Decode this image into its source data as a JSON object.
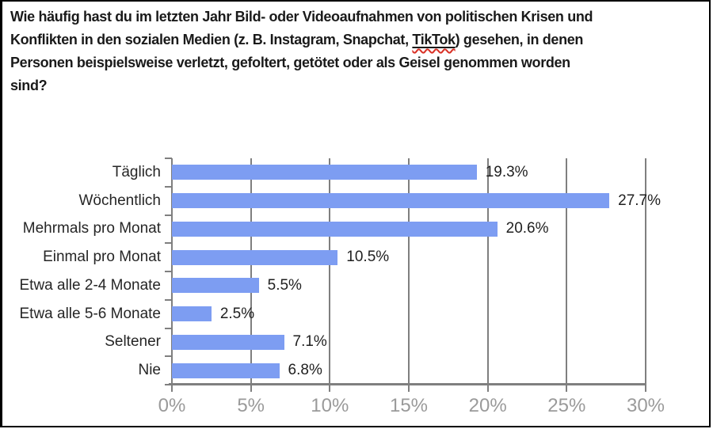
{
  "question": {
    "line1": "Wie häufig hast du im letzten Jahr Bild- oder Videoaufnahmen von politischen Krisen und",
    "line2_before": "Konflikten in den sozialen Medien (z. B. Instagram, Snapchat, ",
    "line2_tiktok": "TikTok",
    "line2_after": ") gesehen, in denen",
    "line3": "Personen beispielsweise verletzt, gefoltert, getötet oder als Geisel genommen worden",
    "line4": "sind?"
  },
  "chart_data": {
    "type": "bar",
    "orientation": "horizontal",
    "title": "Wie häufig hast du im letzten Jahr Bild- oder Videoaufnahmen von politischen Krisen und Konflikten in den sozialen Medien (z. B. Instagram, Snapchat, TikTok) gesehen, in denen Personen beispielsweise verletzt, gefoltert, getötet oder als Geisel genommen worden sind?",
    "categories": [
      "Täglich",
      "Wöchentlich",
      "Mehrmals pro Monat",
      "Einmal pro Monat",
      "Etwa alle 2-4 Monate",
      "Etwa alle 5-6 Monate",
      "Seltener",
      "Nie"
    ],
    "values": [
      19.3,
      27.7,
      20.6,
      10.5,
      5.5,
      2.5,
      7.1,
      6.8
    ],
    "value_labels": [
      "19.3%",
      "27.7%",
      "20.6%",
      "10.5%",
      "5.5%",
      "2.5%",
      "7.1%",
      "6.8%"
    ],
    "x_tick_values": [
      0,
      5,
      10,
      15,
      20,
      25,
      30
    ],
    "x_tick_labels": [
      "0%",
      "5%",
      "10%",
      "15%",
      "20%",
      "25%",
      "30%"
    ],
    "xlim": [
      0,
      30
    ],
    "xlabel": "",
    "ylabel": "",
    "grid": true,
    "legend": null,
    "colors": {
      "bar": "#7D9DF2",
      "grid": "#7F7F7F",
      "axis": "#7F7F7F",
      "x_tick_label": "#9A9A9A",
      "category_label": "#262626",
      "value_label": "#1F1F1F",
      "title": "#1A1A1A",
      "border": "#000000",
      "spellcheck_underline": "#D93025"
    }
  }
}
